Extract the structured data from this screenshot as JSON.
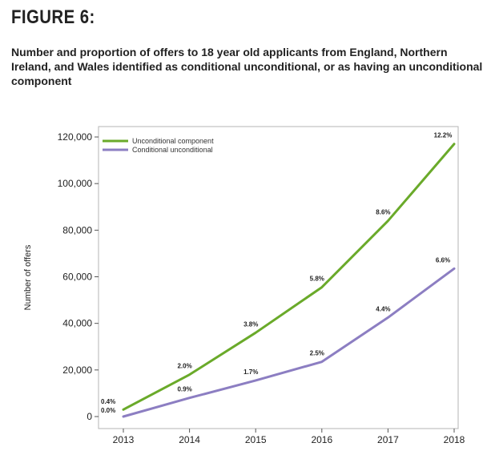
{
  "figure_label": "FIGURE 6:",
  "figure_title": "Number and proportion of offers to 18 year old applicants from England, Northern Ireland, and Wales identified as conditional unconditional, or as having an unconditional component",
  "colors": {
    "unconditional_component": "#6aaa2a",
    "conditional_unconditional": "#8c7ec2"
  },
  "chart_data": {
    "type": "line",
    "title": "",
    "xlabel": "",
    "ylabel": "Number of offers",
    "ylim": [
      0,
      120000
    ],
    "yticks": [
      "0",
      "20,000",
      "40,000",
      "60,000",
      "80,000",
      "100,000",
      "120,000"
    ],
    "ytick_values": [
      0,
      20000,
      40000,
      60000,
      80000,
      100000,
      120000
    ],
    "categories": [
      "2013",
      "2014",
      "2015",
      "2016",
      "2017",
      "2018"
    ],
    "legend_position": "top-left",
    "series": [
      {
        "name": "Unconditional component",
        "color": "#6aaa2a",
        "values": [
          3000,
          18000,
          36000,
          55500,
          84000,
          117000
        ],
        "labels": [
          "0.4%",
          "2.0%",
          "3.8%",
          "5.8%",
          "8.6%",
          "12.2%"
        ]
      },
      {
        "name": "Conditional unconditional",
        "color": "#8c7ec2",
        "values": [
          0,
          8000,
          15500,
          23500,
          42500,
          63500
        ],
        "labels": [
          "0.0%",
          "0.9%",
          "1.7%",
          "2.5%",
          "4.4%",
          "6.6%"
        ]
      }
    ]
  }
}
